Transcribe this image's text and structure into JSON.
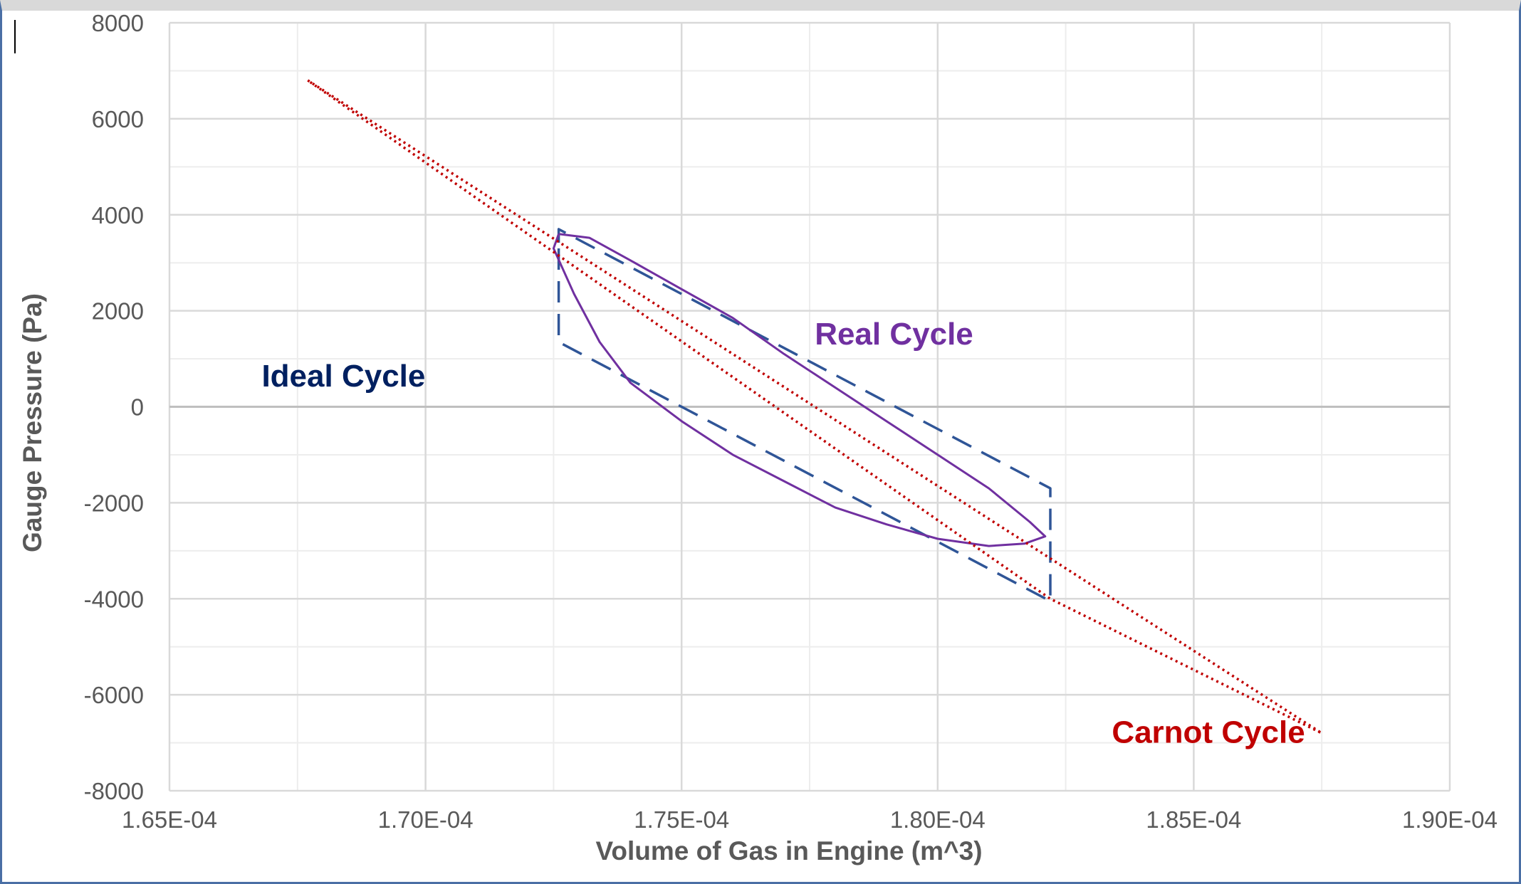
{
  "chart_data": {
    "type": "scatter",
    "xlabel": "Volume of Gas in Engine (m^3)",
    "ylabel": "Gauge Pressure (Pa)",
    "xlim": [
      0.000165,
      0.00019
    ],
    "ylim": [
      -8000,
      8000
    ],
    "x_ticks": [
      {
        "value": 0.000165,
        "label": "1.65E-04"
      },
      {
        "value": 0.00017,
        "label": "1.70E-04"
      },
      {
        "value": 0.000175,
        "label": "1.75E-04"
      },
      {
        "value": 0.00018,
        "label": "1.80E-04"
      },
      {
        "value": 0.000185,
        "label": "1.85E-04"
      },
      {
        "value": 0.00019,
        "label": "1.90E-04"
      }
    ],
    "y_ticks": [
      {
        "value": 8000,
        "label": "8000"
      },
      {
        "value": 6000,
        "label": "6000"
      },
      {
        "value": 4000,
        "label": "4000"
      },
      {
        "value": 2000,
        "label": "2000"
      },
      {
        "value": 0,
        "label": "0"
      },
      {
        "value": -2000,
        "label": "-2000"
      },
      {
        "value": -4000,
        "label": "-4000"
      },
      {
        "value": -6000,
        "label": "-6000"
      },
      {
        "value": -8000,
        "label": "-8000"
      }
    ],
    "grid": true,
    "series": [
      {
        "name": "Ideal Cycle",
        "color": "#2f5597",
        "style": "dashed",
        "points": [
          [
            0.0001726,
            3300
          ],
          [
            0.0001726,
            1350
          ],
          [
            0.0001822,
            -4050
          ],
          [
            0.0001822,
            -2100
          ],
          [
            0.0001822,
            -1700
          ],
          [
            0.0001726,
            3700
          ],
          [
            0.0001726,
            3300
          ]
        ]
      },
      {
        "name": "Real Cycle",
        "color": "#7030a0",
        "style": "solid",
        "points": [
          [
            0.0001726,
            3600
          ],
          [
            0.0001732,
            3520
          ],
          [
            0.000174,
            3050
          ],
          [
            0.000175,
            2450
          ],
          [
            0.000176,
            1850
          ],
          [
            0.000177,
            1100
          ],
          [
            0.000178,
            400
          ],
          [
            0.000179,
            -300
          ],
          [
            0.00018,
            -1000
          ],
          [
            0.000181,
            -1700
          ],
          [
            0.0001818,
            -2400
          ],
          [
            0.0001821,
            -2700
          ],
          [
            0.0001817,
            -2850
          ],
          [
            0.000181,
            -2900
          ],
          [
            0.00018,
            -2750
          ],
          [
            0.000179,
            -2450
          ],
          [
            0.000178,
            -2100
          ],
          [
            0.000177,
            -1550
          ],
          [
            0.000176,
            -1000
          ],
          [
            0.000175,
            -300
          ],
          [
            0.000174,
            500
          ],
          [
            0.0001734,
            1350
          ],
          [
            0.0001729,
            2350
          ],
          [
            0.0001725,
            3300
          ],
          [
            0.0001726,
            3600
          ]
        ]
      },
      {
        "name": "Carnot Cycle",
        "color": "#c00000",
        "style": "dotted",
        "points": [
          [
            0.0001677,
            6800
          ],
          [
            0.0001875,
            -6800
          ],
          [
            0.0001822,
            -4000
          ],
          [
            0.0001677,
            6800
          ]
        ]
      }
    ],
    "annotations": [
      {
        "text": "Ideal Cycle",
        "x": 0.0001668,
        "y": 420,
        "color": "#002060"
      },
      {
        "text": "Real Cycle",
        "x": 0.0001776,
        "y": 1300,
        "color": "#7030a0"
      },
      {
        "text": "Carnot Cycle",
        "x": 0.0001834,
        "y": -7000,
        "color": "#c00000"
      }
    ]
  }
}
